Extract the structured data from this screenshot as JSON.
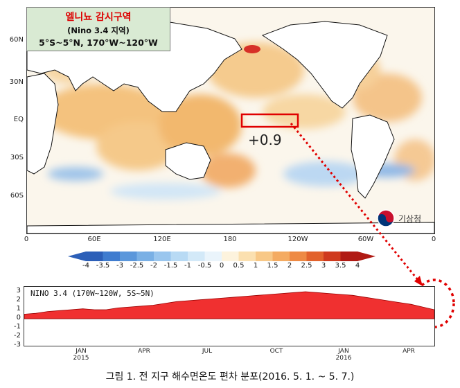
{
  "info_box": {
    "title": "엘니뇨 감시구역",
    "subtitle": "(Nino 3.4 지역)",
    "range": "5°S~5°N, 170°W~120°W"
  },
  "map": {
    "lat_labels": [
      "60N",
      "30N",
      "EQ",
      "30S",
      "60S"
    ],
    "lon_labels": [
      "0",
      "60E",
      "120E",
      "180",
      "120W",
      "60W",
      "0"
    ],
    "anomaly_value": "+0.9",
    "logo_text": "기상청",
    "colors": {
      "warm": "#f2c27a",
      "cool": "#a8c8ea",
      "land": "#ffffff",
      "hot": "#d73027",
      "box": "#e00000"
    }
  },
  "colorbar": {
    "labels": [
      "-4",
      "-3.5",
      "-3",
      "-2.5",
      "-2",
      "-1.5",
      "-1",
      "-0.5",
      "0",
      "0.5",
      "1",
      "1.5",
      "2",
      "2.5",
      "3",
      "3.5",
      "4"
    ],
    "colors": [
      "#2c5fb8",
      "#3f7ccf",
      "#5b97db",
      "#7ab0e5",
      "#9ac6ee",
      "#b8daf4",
      "#d3e9f8",
      "#eaf4fb",
      "#fdf3dd",
      "#fbe0b0",
      "#f8c887",
      "#f4ab62",
      "#ee8a44",
      "#e2622c",
      "#cf3a1e",
      "#b01a14"
    ]
  },
  "timeseries": {
    "title": "NINO 3.4 (170W~120W, 5S~5N)",
    "y_labels": [
      "3",
      "2",
      "1",
      "0",
      "-1",
      "-2",
      "-3"
    ],
    "x_labels": [
      {
        "month": "JAN",
        "year": "2015"
      },
      {
        "month": "APR",
        "year": ""
      },
      {
        "month": "JUL",
        "year": ""
      },
      {
        "month": "OCT",
        "year": ""
      },
      {
        "month": "JAN",
        "year": "2016"
      },
      {
        "month": "APR",
        "year": ""
      }
    ],
    "fill_color": "#f03030"
  },
  "caption": "그림 1. 전 지구 해수면온도 편차 분포(2016. 5. 1. ~ 5. 7.)"
}
